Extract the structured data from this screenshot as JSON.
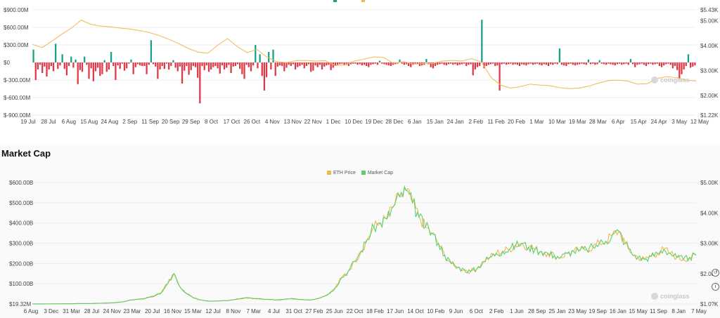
{
  "top_chart": {
    "colors": {
      "positive": "#1a9f8a",
      "negative": "#e23744",
      "price": "#f0b84e"
    },
    "watermark": "coinglass",
    "left_ticks": [
      "$900.00M",
      "$600.00M",
      "$300.00M",
      "$0",
      "$-300.00M",
      "$-600.00M",
      "$-900.00M"
    ],
    "right_ticks": [
      "$5.43K",
      "$5.00K",
      "$4.00K",
      "$3.00K",
      "$2.00K",
      "$1.22K"
    ],
    "x_labels": [
      "19 Jul",
      "28 Jul",
      "6 Aug",
      "15 Aug",
      "24 Aug",
      "2 Sep",
      "11 Sep",
      "20 Sep",
      "29 Sep",
      "8 Oct",
      "17 Oct",
      "26 Oct",
      "4 Nov",
      "13 Nov",
      "22 Nov",
      "1 Dec",
      "10 Dec",
      "19 Dec",
      "28 Dec",
      "6 Jan",
      "15 Jan",
      "24 Jan",
      "2 Feb",
      "11 Feb",
      "20 Feb",
      "1 Mar",
      "10 Mar",
      "19 Mar",
      "28 Mar",
      "6 Apr",
      "15 Apr",
      "24 Apr",
      "3 May",
      "12 May"
    ]
  },
  "bottom_chart": {
    "title": "Market Cap",
    "watermark": "coinglass",
    "legend": [
      {
        "name": "ETH Price",
        "color": "#f0b84e"
      },
      {
        "name": "Market Cap",
        "color": "#5ccf6d"
      }
    ],
    "left_ticks": [
      "$600.00B",
      "$500.00B",
      "$400.00B",
      "$300.00B",
      "$200.00B",
      "$100.00B",
      "$19.32M"
    ],
    "right_ticks": [
      "$5.00K",
      "$4.00K",
      "$3.00K",
      "$2.00K",
      "$1.0?K"
    ],
    "x_labels": [
      "6 Aug",
      "3 Dec",
      "31 Mar",
      "28 Jul",
      "24 Nov",
      "23 Mar",
      "20 Jul",
      "16 Nov",
      "15 Mar",
      "12 Jul",
      "8 Nov",
      "7 Mar",
      "4 Jul",
      "31 Oct",
      "27 Feb",
      "25 Jun",
      "22 Oct",
      "18 Feb",
      "17 Jun",
      "14 Oct",
      "10 Feb",
      "9 Jun",
      "6 Oct",
      "2 Feb",
      "1 Jun",
      "28 Sep",
      "25 Jan",
      "23 May",
      "19 Sep",
      "16 Jan",
      "15 May",
      "11 Sep",
      "8 Jan",
      "7 May"
    ]
  },
  "chart_data": [
    {
      "type": "bar",
      "title": "",
      "series": [
        {
          "name": "",
          "values": [
            220,
            -300,
            -120,
            -40,
            -180,
            -70,
            -240,
            -120,
            -60,
            -150,
            320,
            -110,
            -50,
            140,
            -110,
            -220,
            -60,
            100,
            -90,
            50,
            -370,
            -130,
            -160,
            100,
            -40,
            -280,
            -100,
            -320,
            -150,
            -90,
            -230,
            -200,
            40,
            -160,
            -120,
            180,
            -60,
            -300,
            -50,
            -110,
            -20,
            -140,
            -100,
            -20,
            50,
            -200,
            -80,
            -30,
            -50,
            -60,
            -60,
            -200,
            -40,
            380,
            -30,
            -70,
            -280,
            -120,
            -60,
            -110,
            -20,
            -120,
            -60,
            40,
            -90,
            -150,
            -70,
            -360,
            -140,
            -60,
            -210,
            -130,
            -60,
            -80,
            -260,
            -700,
            -60,
            -130,
            -50,
            -160,
            -120,
            -80,
            -60,
            -100,
            -190,
            -50,
            -120,
            -90,
            -40,
            -180,
            -70,
            -60,
            -30,
            -110,
            -200,
            -280,
            -40,
            -80,
            -150,
            -50,
            300,
            -100,
            140,
            -230,
            -480,
            -250,
            180,
            -120,
            220,
            -230,
            -70,
            -50,
            -60,
            -150,
            -90,
            -40,
            -60,
            -30,
            -120,
            -80,
            -60,
            -40,
            -100,
            -60,
            -30,
            -160,
            -140,
            -50,
            -80,
            -40,
            -120,
            -70,
            -50,
            -40,
            -130,
            -90,
            -60,
            -40,
            -30,
            -20,
            -50,
            -40,
            -60,
            -30,
            -20,
            -20,
            -40,
            -30,
            -50,
            -40,
            -60,
            -80,
            -40,
            -30,
            -20,
            -40,
            30,
            -20,
            -30,
            -40,
            -50,
            -60,
            -40,
            -30,
            -20,
            50,
            -20,
            -40,
            -30,
            -60,
            -80,
            -40,
            -20,
            -30,
            -60,
            -50,
            -40,
            60,
            -30,
            -80,
            -100,
            -60,
            -40,
            -30,
            -20,
            -40,
            -50,
            -30,
            -20,
            -40,
            -30,
            -50,
            -40,
            -30,
            -20,
            -60,
            -40,
            -30,
            -220,
            -120,
            -80,
            -60,
            730,
            -100,
            -60,
            -40,
            -30,
            -20,
            -60,
            -50,
            -480,
            -30,
            -20,
            -40,
            -30,
            -20,
            -40,
            -30,
            -40,
            -60,
            -30,
            -40,
            -50,
            -30,
            -20,
            -40,
            -30,
            -20,
            -40,
            -50,
            -30,
            -40,
            -60,
            -30,
            -40,
            -20,
            -30,
            240,
            -40,
            -50,
            -60,
            -30,
            -20,
            -40,
            -50,
            -40,
            -30,
            -20,
            -30,
            -40,
            50,
            -30,
            -20,
            -40,
            -30,
            40,
            -20,
            -30,
            -40,
            -20,
            -30,
            -40,
            -50,
            -30,
            -20,
            -40,
            -30,
            -20,
            -40,
            60,
            -30,
            -80,
            -40,
            -30,
            -20,
            -40,
            -60,
            -30,
            -20,
            -40,
            -30,
            -20,
            -60,
            -80,
            -50,
            -30,
            -20,
            -40,
            -100,
            -60,
            -130,
            -280,
            -200,
            -120,
            -60,
            140,
            -90,
            -70,
            -50
          ]
        },
        {
          "name": "",
          "values": [
            4.05,
            3.92,
            4.18,
            4.45,
            4.7,
            5.02,
            4.85,
            4.78,
            4.75,
            4.7,
            4.66,
            4.6,
            4.52,
            4.4,
            4.25,
            4.08,
            3.88,
            3.74,
            3.7,
            4.02,
            4.28,
            3.96,
            3.72,
            3.85,
            3.55,
            3.36,
            3.32,
            3.4,
            3.41,
            3.38,
            3.4,
            3.2,
            3.23,
            3.38,
            3.46,
            3.55,
            3.52,
            3.29,
            3.36,
            3.26,
            3.28,
            3.29,
            3.38,
            3.41,
            3.38,
            3.48,
            3.35,
            2.72,
            2.42,
            2.3,
            2.36,
            2.46,
            2.42,
            2.4,
            2.32,
            2.28,
            2.3,
            2.38,
            2.5,
            2.6,
            2.62,
            2.58,
            2.46,
            2.48,
            2.68,
            2.76,
            2.72,
            2.62,
            2.58
          ]
        }
      ],
      "ylim_left": [
        -900,
        900
      ],
      "ylim_right": [
        1.22,
        5.43
      ]
    },
    {
      "type": "line",
      "title": "Market Cap",
      "series": [
        {
          "name": "Market Cap",
          "values": [
            0.1,
            0.2,
            0.3,
            0.5,
            0.8,
            1,
            1,
            2,
            2,
            2,
            3,
            4,
            5,
            7,
            10,
            18,
            22,
            25,
            32,
            40,
            55,
            100,
            150,
            80,
            50,
            30,
            20,
            15,
            14,
            15,
            16,
            20,
            25,
            30,
            28,
            26,
            23,
            22,
            20,
            22,
            26,
            24,
            22,
            20,
            25,
            35,
            50,
            80,
            130,
            160,
            210,
            260,
            320,
            380,
            400,
            420,
            480,
            530,
            560,
            500,
            430,
            380,
            350,
            300,
            240,
            200,
            180,
            170,
            160,
            175,
            210,
            230,
            250,
            260,
            270,
            290,
            300,
            280,
            270,
            260,
            250,
            240,
            230,
            250,
            260,
            265,
            270,
            280,
            300,
            310,
            340,
            360,
            300,
            250,
            230,
            220,
            235,
            250,
            270,
            250,
            230,
            220,
            230,
            240
          ]
        },
        {
          "name": "ETH Price",
          "values": [
            0.1,
            0.2,
            0.3,
            0.5,
            0.8,
            1,
            1,
            2,
            2,
            2,
            3,
            4,
            5,
            7,
            10,
            18,
            22,
            25,
            32,
            40,
            55,
            100,
            150,
            80,
            50,
            30,
            20,
            15,
            14,
            15,
            16,
            20,
            25,
            30,
            28,
            26,
            23,
            22,
            20,
            22,
            26,
            24,
            22,
            20,
            25,
            35,
            50,
            80,
            130,
            160,
            210,
            260,
            320,
            380,
            400,
            420,
            480,
            530,
            560,
            500,
            430,
            380,
            350,
            300,
            240,
            200,
            180,
            170,
            160,
            175,
            210,
            230,
            250,
            260,
            270,
            290,
            300,
            280,
            270,
            260,
            250,
            240,
            230,
            250,
            260,
            265,
            270,
            280,
            300,
            310,
            340,
            360,
            300,
            250,
            230,
            220,
            235,
            250,
            270,
            250,
            230,
            220,
            230,
            240
          ]
        }
      ],
      "ylim_left": [
        0,
        600
      ],
      "ylim_right": [
        1.0,
        5.0
      ]
    }
  ]
}
